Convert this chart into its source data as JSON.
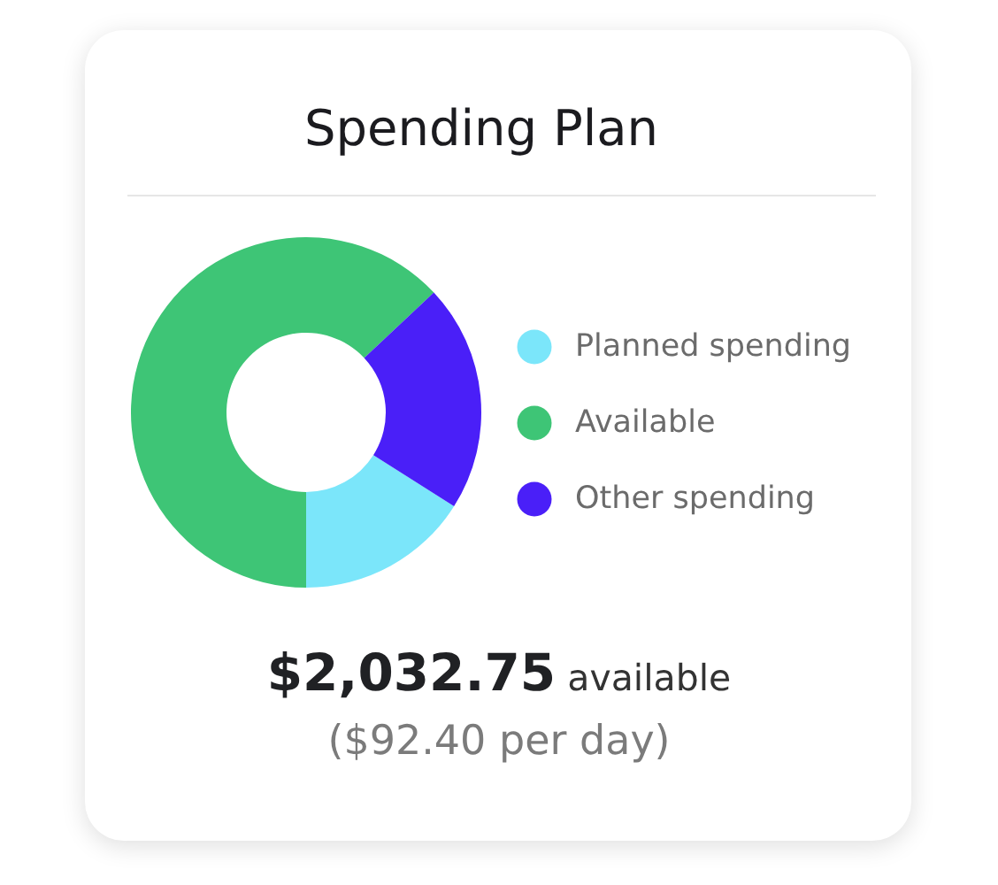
{
  "chart_data": {
    "type": "donut",
    "title": "Spending Plan",
    "categories": [
      "Planned spending",
      "Available",
      "Other spending"
    ],
    "values": [
      16,
      63,
      21
    ],
    "colors": [
      "#7be6fa",
      "#3ec576",
      "#4a1ff8"
    ],
    "legend": "right",
    "annotations": [
      "$2,032.75 available",
      "($92.40 per day)"
    ]
  }
}
